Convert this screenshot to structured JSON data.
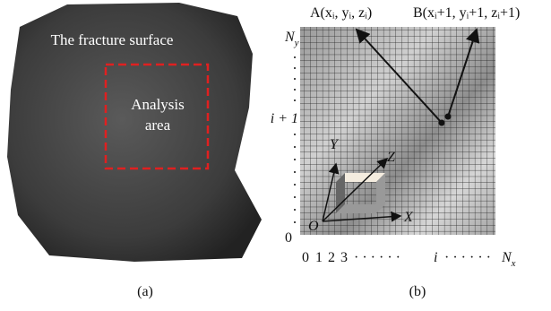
{
  "panel_a": {
    "surface_label": "The fracture surface",
    "area_label": [
      "Analysis",
      "area"
    ],
    "caption": "(a)"
  },
  "panel_b": {
    "point_a": "A(xᵢ, yᵢ, zᵢ)",
    "point_b": "B(xᵢ+1, yᵢ+1, zᵢ+1)",
    "y_axis": {
      "top": {
        "text": "N",
        "subscript": "y"
      },
      "middle": "i + 1",
      "bottom": "0"
    },
    "x_axis": {
      "origin": "0",
      "ticks": [
        "1",
        "2",
        "3"
      ],
      "dots_left": "· · · · · ·",
      "middle": "i",
      "dots_right": "· · · · · ·",
      "end": {
        "text": "N",
        "subscript": "x"
      }
    },
    "frame": {
      "y": "Y",
      "z": "Z",
      "x": "X",
      "origin": "O"
    },
    "caption": "(b)"
  }
}
